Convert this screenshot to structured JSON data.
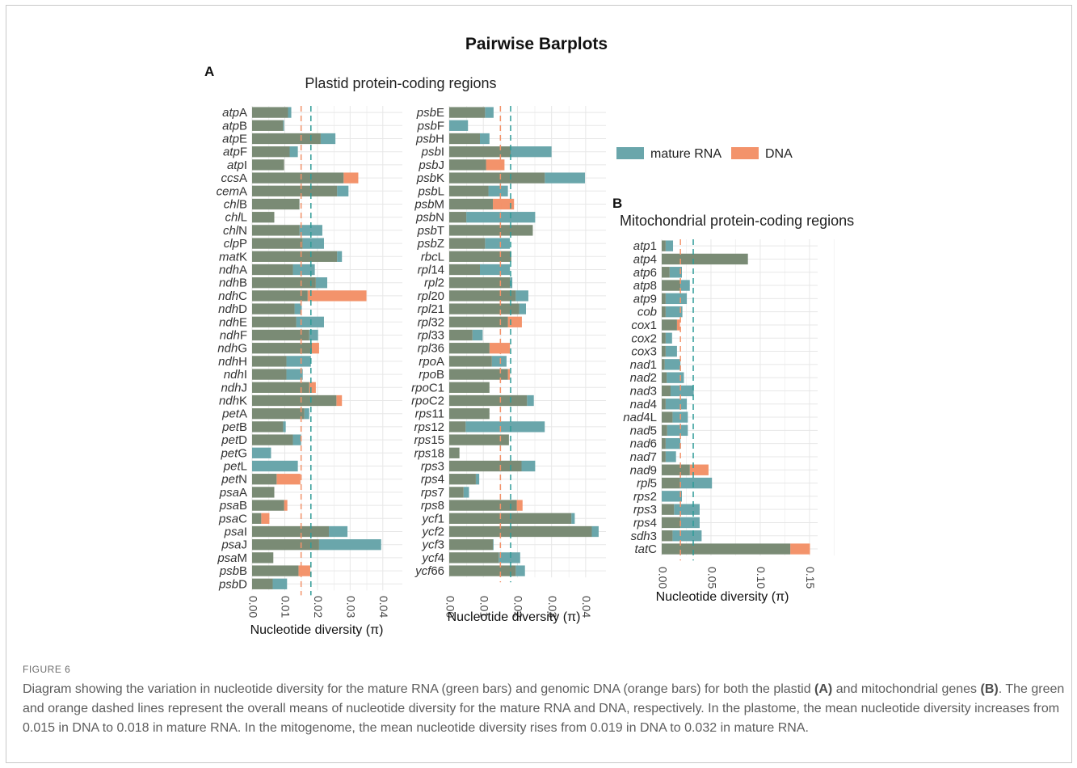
{
  "figure": {
    "title": "Pairwise Barplots",
    "panel_a_letter": "A",
    "panel_b_letter": "B",
    "panel_a_title": "Plastid protein-coding regions",
    "panel_b_title": "Mitochondrial protein-coding regions",
    "legend": [
      {
        "label": "mature RNA",
        "color": "#6aa6ab"
      },
      {
        "label": "DNA",
        "color": "#f3936b"
      }
    ],
    "xlabel": "Nucleotide diversity (π)"
  },
  "caption": {
    "label": "FIGURE 6",
    "part1": "Diagram showing the variation in nucleotide diversity for the mature RNA (green bars) and genomic DNA (orange bars) for both the plastid ",
    "ref_a": "(A)",
    "part2": " and mitochondrial genes ",
    "ref_b": "(B)",
    "part3": ". The green and orange dashed lines represent the overall means of nucleotide diversity for the mature RNA and DNA, respectively. In the plastome, the mean nucleotide diversity increases from 0.015 in DNA to 0.018 in mature RNA. In the mitogenome, the mean nucleotide diversity rises from 0.019 in DNA to 0.032 in mature RNA."
  },
  "colors": {
    "rna": "#6aa6ab",
    "dna": "#f3936b",
    "overlap": "#7a8b75",
    "grid": "#e7e7e7"
  },
  "chart_data": [
    {
      "type": "bar",
      "orientation": "horizontal",
      "title": "Plastid protein-coding regions",
      "xlabel": "Nucleotide diversity (π)",
      "xlim": [
        0,
        0.045
      ],
      "xticks": [
        "0.00",
        "0.01",
        "0.02",
        "0.03",
        "0.04"
      ],
      "mean_dna": 0.015,
      "mean_rna": 0.018,
      "genes": [
        [
          "atp",
          "A",
          0.011,
          0.012
        ],
        [
          "atp",
          "B",
          0.0095,
          0.0098
        ],
        [
          "atp",
          "E",
          0.021,
          0.0255
        ],
        [
          "atp",
          "F",
          0.0115,
          0.014
        ],
        [
          "atp",
          "I",
          0.0098,
          0.0098
        ],
        [
          "ccs",
          "A",
          0.0325,
          0.028
        ],
        [
          "cem",
          "A",
          0.026,
          0.0295
        ],
        [
          "chl",
          "B",
          0.0145,
          0.0145
        ],
        [
          "chl",
          "L",
          0.0068,
          0.0068
        ],
        [
          "chl",
          "N",
          0.0145,
          0.0215
        ],
        [
          "clp",
          "P",
          0.0155,
          0.022
        ],
        [
          "mat",
          "K",
          0.026,
          0.0275
        ],
        [
          "ndh",
          "A",
          0.0125,
          0.0192
        ],
        [
          "ndh",
          "B",
          0.0195,
          0.023
        ],
        [
          "ndh",
          "C",
          0.035,
          0.017
        ],
        [
          "ndh",
          "D",
          0.013,
          0.0152
        ],
        [
          "ndh",
          "E",
          0.0135,
          0.022
        ],
        [
          "ndh",
          "F",
          0.0175,
          0.0202
        ],
        [
          "ndh",
          "G",
          0.0205,
          0.0183
        ],
        [
          "ndh",
          "H",
          0.0105,
          0.018
        ],
        [
          "ndh",
          "I",
          0.0105,
          0.0155
        ],
        [
          "ndh",
          "J",
          0.0195,
          0.0175
        ],
        [
          "ndh",
          "K",
          0.0275,
          0.0258
        ],
        [
          "pet",
          "A",
          0.016,
          0.0175
        ],
        [
          "pet",
          "B",
          0.0095,
          0.0103
        ],
        [
          "pet",
          "D",
          0.0125,
          0.015
        ],
        [
          "pet",
          "G",
          0.0,
          0.0058
        ],
        [
          "pet",
          "L",
          0.0,
          0.014
        ],
        [
          "pet",
          "N",
          0.0148,
          0.0075
        ],
        [
          "psa",
          "A",
          0.0068,
          0.0068
        ],
        [
          "psa",
          "B",
          0.0108,
          0.0098
        ],
        [
          "psa",
          "C",
          0.0053,
          0.0028
        ],
        [
          "psa",
          "I",
          0.0235,
          0.0292
        ],
        [
          "psa",
          "J",
          0.0205,
          0.0395
        ],
        [
          "psa",
          "M",
          0.0065,
          0.0065
        ],
        [
          "psb",
          "B",
          0.0178,
          0.0142
        ],
        [
          "psb",
          "D",
          0.0063,
          0.0107
        ]
      ]
    },
    {
      "type": "bar",
      "orientation": "horizontal",
      "title": "Plastid protein-coding regions",
      "xlabel": "Nucleotide diversity (π)",
      "xlim": [
        0,
        0.045
      ],
      "xticks": [
        "0.00",
        "0.01",
        "0.02",
        "0.03",
        "0.04"
      ],
      "mean_dna": 0.015,
      "mean_rna": 0.018,
      "genes": [
        [
          "psb",
          "E",
          0.0105,
          0.013
        ],
        [
          "psb",
          "F",
          0.0,
          0.0055
        ],
        [
          "psb",
          "H",
          0.009,
          0.0118
        ],
        [
          "psb",
          "I",
          0.018,
          0.03
        ],
        [
          "psb",
          "J",
          0.0162,
          0.0108
        ],
        [
          "psb",
          "K",
          0.028,
          0.0398
        ],
        [
          "psb",
          "L",
          0.0115,
          0.0172
        ],
        [
          "psb",
          "M",
          0.019,
          0.0128
        ],
        [
          "psb",
          "N",
          0.005,
          0.0252
        ],
        [
          "psb",
          "T",
          0.0245,
          0.0245
        ],
        [
          "psb",
          "Z",
          0.0105,
          0.0178
        ],
        [
          "rbc",
          "L",
          0.0182,
          0.0182
        ],
        [
          "rpl",
          "14",
          0.009,
          0.0178
        ],
        [
          "rpl",
          "2",
          0.0178,
          0.0185
        ],
        [
          "rpl",
          "20",
          0.0195,
          0.0232
        ],
        [
          "rpl",
          "21",
          0.0205,
          0.0225
        ],
        [
          "rpl",
          "32",
          0.0213,
          0.0172
        ],
        [
          "rpl",
          "33",
          0.0068,
          0.0098
        ],
        [
          "rpl",
          "36",
          0.0178,
          0.0118
        ],
        [
          "rpo",
          "A",
          0.0125,
          0.0168
        ],
        [
          "rpo",
          "B",
          0.0178,
          0.0172
        ],
        [
          "rpo",
          "C1",
          0.0118,
          0.0118
        ],
        [
          "rpo",
          "C2",
          0.0228,
          0.0248
        ],
        [
          "rps",
          "11",
          0.0118,
          0.0118
        ],
        [
          "rps",
          "12",
          0.0048,
          0.028
        ],
        [
          "rps",
          "15",
          0.0175,
          0.0175
        ],
        [
          "rps",
          "18",
          0.003,
          0.003
        ],
        [
          "rps",
          "3",
          0.0212,
          0.0252
        ],
        [
          "rps",
          "4",
          0.0078,
          0.0088
        ],
        [
          "rps",
          "7",
          0.0042,
          0.0058
        ],
        [
          "rps",
          "8",
          0.0215,
          0.0198
        ],
        [
          "ycf",
          "1",
          0.0358,
          0.0368
        ],
        [
          "ycf",
          "2",
          0.0418,
          0.0438
        ],
        [
          "ycf",
          "3",
          0.0128,
          0.013
        ],
        [
          "ycf",
          "4",
          0.0145,
          0.0208
        ],
        [
          "ycf",
          "66",
          0.0195,
          0.0222
        ]
      ]
    },
    {
      "type": "bar",
      "orientation": "horizontal",
      "title": "Mitochondrial protein-coding regions",
      "xlabel": "Nucleotide diversity (π)",
      "xlim": [
        0,
        0.155
      ],
      "xticks": [
        "0.00",
        "0.05",
        "0.10",
        "0.15"
      ],
      "mean_dna": 0.019,
      "mean_rna": 0.032,
      "genes": [
        [
          "atp",
          "1",
          0.004,
          0.0115
        ],
        [
          "atp",
          "4",
          0.0875,
          0.0875
        ],
        [
          "atp",
          "6",
          0.008,
          0.0205
        ],
        [
          "atp",
          "8",
          0.019,
          0.0285
        ],
        [
          "atp",
          "9",
          0.004,
          0.0255
        ],
        [
          "cob",
          "",
          0.004,
          0.021
        ],
        [
          "cox",
          "1",
          0.0185,
          0.0155
        ],
        [
          "cox",
          "2",
          0.004,
          0.0105
        ],
        [
          "cox",
          "3",
          0.004,
          0.0155
        ],
        [
          "nad",
          "1",
          0.003,
          0.019
        ],
        [
          "nad",
          "2",
          0.005,
          0.0225
        ],
        [
          "nad",
          "3",
          0.009,
          0.0325
        ],
        [
          "nad",
          "4",
          0.004,
          0.0255
        ],
        [
          "nad",
          "4L",
          0.011,
          0.0265
        ],
        [
          "nad",
          "5",
          0.0055,
          0.0265
        ],
        [
          "nad",
          "6",
          0.004,
          0.019
        ],
        [
          "nad",
          "7",
          0.004,
          0.0145
        ],
        [
          "nad",
          "9",
          0.0475,
          0.0285
        ],
        [
          "rpl",
          "5",
          0.0185,
          0.051
        ],
        [
          "rps",
          "2",
          0.0,
          0.0205
        ],
        [
          "rps",
          "3",
          0.0125,
          0.0385
        ],
        [
          "rps",
          "4",
          0.019,
          0.0385
        ],
        [
          "sdh",
          "3",
          0.011,
          0.0405
        ],
        [
          "tat",
          "C",
          0.1505,
          0.1305
        ]
      ]
    }
  ]
}
